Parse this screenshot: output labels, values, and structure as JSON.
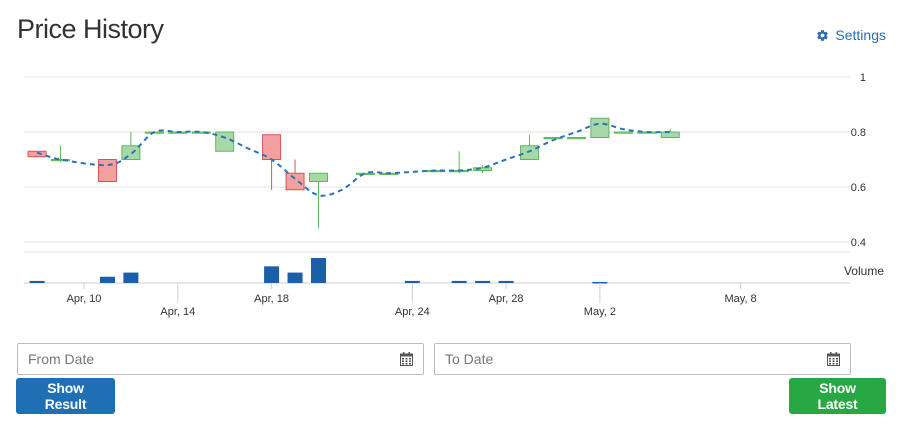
{
  "page": {
    "title": "Price History",
    "settings_label": "Settings"
  },
  "form": {
    "from_placeholder": "From Date",
    "to_placeholder": "To Date",
    "show_result_label": "Show Result",
    "show_latest_label": "Show Latest"
  },
  "colors": {
    "up_fill": "#a8d8a8",
    "up_stroke": "#5cb85c",
    "down_fill": "#f4a0a0",
    "down_stroke": "#d9534f",
    "line": "#2a74b5",
    "volume": "#1a5fa8",
    "grid": "#e6e6e6",
    "link": "#2a6fb5"
  },
  "icons": {
    "settings": "gear-icon",
    "calendar": "calendar-icon"
  },
  "chart_data": {
    "type": "candlestick",
    "price_axis": {
      "ylim": [
        0.4,
        1.0
      ],
      "ticks": [
        0.4,
        0.6,
        0.8,
        1.0
      ],
      "position": "right"
    },
    "volume_axis": {
      "label": "Volume"
    },
    "x_ticks_row1": [
      "Apr, 10",
      "Apr, 18",
      "Apr, 28",
      "May, 8"
    ],
    "x_ticks_row2": [
      "Apr, 14",
      "Apr, 24",
      "May, 2"
    ],
    "x_tick_days": {
      "Apr, 10": 10,
      "Apr, 14": 14,
      "Apr, 18": 18,
      "Apr, 24": 24,
      "Apr, 28": 28,
      "May, 2": 32,
      "May, 8": 38
    },
    "candles": [
      {
        "date": "Apr 8",
        "day": 8,
        "open": 0.73,
        "high": 0.73,
        "low": 0.71,
        "close": 0.71
      },
      {
        "date": "Apr 9",
        "day": 9,
        "open": 0.7,
        "high": 0.75,
        "low": 0.69,
        "close": 0.7
      },
      {
        "date": "Apr 11",
        "day": 11,
        "open": 0.7,
        "high": 0.7,
        "low": 0.62,
        "close": 0.62
      },
      {
        "date": "Apr 12",
        "day": 12,
        "open": 0.7,
        "high": 0.8,
        "low": 0.7,
        "close": 0.75
      },
      {
        "date": "Apr 13",
        "day": 13,
        "open": 0.8,
        "high": 0.8,
        "low": 0.8,
        "close": 0.8
      },
      {
        "date": "Apr 14",
        "day": 14,
        "open": 0.8,
        "high": 0.8,
        "low": 0.8,
        "close": 0.8
      },
      {
        "date": "Apr 15",
        "day": 15,
        "open": 0.8,
        "high": 0.8,
        "low": 0.8,
        "close": 0.8
      },
      {
        "date": "Apr 16",
        "day": 16,
        "open": 0.73,
        "high": 0.8,
        "low": 0.73,
        "close": 0.8
      },
      {
        "date": "Apr 18",
        "day": 18,
        "open": 0.79,
        "high": 0.79,
        "low": 0.59,
        "close": 0.7
      },
      {
        "date": "Apr 19",
        "day": 19,
        "open": 0.65,
        "high": 0.7,
        "low": 0.59,
        "close": 0.59
      },
      {
        "date": "Apr 20",
        "day": 20,
        "open": 0.62,
        "high": 0.65,
        "low": 0.45,
        "close": 0.65
      },
      {
        "date": "Apr 22",
        "day": 22,
        "open": 0.65,
        "high": 0.65,
        "low": 0.65,
        "close": 0.65
      },
      {
        "date": "Apr 23",
        "day": 23,
        "open": 0.65,
        "high": 0.65,
        "low": 0.65,
        "close": 0.65
      },
      {
        "date": "Apr 25",
        "day": 25,
        "open": 0.66,
        "high": 0.66,
        "low": 0.66,
        "close": 0.66
      },
      {
        "date": "Apr 26",
        "day": 26,
        "open": 0.66,
        "high": 0.73,
        "low": 0.65,
        "close": 0.66
      },
      {
        "date": "Apr 27",
        "day": 27,
        "open": 0.66,
        "high": 0.68,
        "low": 0.65,
        "close": 0.67
      },
      {
        "date": "Apr 29",
        "day": 29,
        "open": 0.7,
        "high": 0.79,
        "low": 0.7,
        "close": 0.75
      },
      {
        "date": "Apr 30",
        "day": 30,
        "open": 0.78,
        "high": 0.78,
        "low": 0.78,
        "close": 0.78
      },
      {
        "date": "May 1",
        "day": 31,
        "open": 0.78,
        "high": 0.78,
        "low": 0.78,
        "close": 0.78
      },
      {
        "date": "May 2",
        "day": 32,
        "open": 0.78,
        "high": 0.85,
        "low": 0.78,
        "close": 0.85
      },
      {
        "date": "May 3",
        "day": 33,
        "open": 0.8,
        "high": 0.8,
        "low": 0.8,
        "close": 0.8
      },
      {
        "date": "May 4",
        "day": 34,
        "open": 0.8,
        "high": 0.8,
        "low": 0.8,
        "close": 0.8
      },
      {
        "date": "May 5",
        "day": 35,
        "open": 0.78,
        "high": 0.81,
        "low": 0.78,
        "close": 0.8
      }
    ],
    "trend_line": {
      "style": "dashed",
      "points": [
        [
          8,
          0.725
        ],
        [
          9,
          0.7
        ],
        [
          11,
          0.68
        ],
        [
          12,
          0.72
        ],
        [
          13,
          0.8
        ],
        [
          14,
          0.8
        ],
        [
          15,
          0.8
        ],
        [
          16,
          0.78
        ],
        [
          17,
          0.74
        ],
        [
          18,
          0.7
        ],
        [
          19,
          0.63
        ],
        [
          20,
          0.57
        ],
        [
          21,
          0.59
        ],
        [
          22,
          0.65
        ],
        [
          23,
          0.65
        ],
        [
          24,
          0.655
        ],
        [
          25,
          0.66
        ],
        [
          26,
          0.66
        ],
        [
          27,
          0.67
        ],
        [
          28,
          0.7
        ],
        [
          29,
          0.73
        ],
        [
          30,
          0.77
        ],
        [
          31,
          0.8
        ],
        [
          32,
          0.83
        ],
        [
          33,
          0.81
        ],
        [
          34,
          0.8
        ],
        [
          35,
          0.8
        ]
      ]
    },
    "volume": [
      {
        "day": 8,
        "value": 1
      },
      {
        "day": 11,
        "value": 3
      },
      {
        "day": 12,
        "value": 5
      },
      {
        "day": 18,
        "value": 8
      },
      {
        "day": 19,
        "value": 5
      },
      {
        "day": 20,
        "value": 12
      },
      {
        "day": 24,
        "value": 1
      },
      {
        "day": 26,
        "value": 1
      },
      {
        "day": 27,
        "value": 1
      },
      {
        "day": 28,
        "value": 1
      },
      {
        "day": 32,
        "value": 0.5
      }
    ],
    "grid": true
  }
}
